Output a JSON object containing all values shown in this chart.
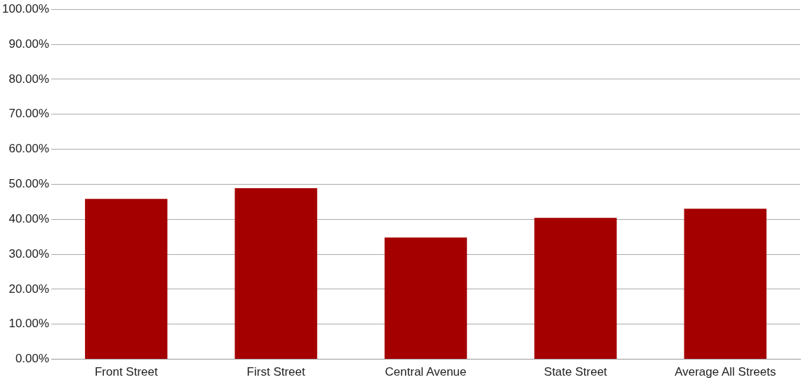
{
  "chart_data": {
    "type": "bar",
    "categories": [
      "Front Street",
      "First Street",
      "Central Avenue",
      "State Street",
      "Average All Streets"
    ],
    "values": [
      45.8,
      48.9,
      34.8,
      40.4,
      43.0
    ],
    "color": "#a40000",
    "ylim": [
      0,
      100
    ],
    "yticks": [
      {
        "value": 0,
        "label": "0.00%"
      },
      {
        "value": 10,
        "label": "10.00%"
      },
      {
        "value": 20,
        "label": "20.00%"
      },
      {
        "value": 30,
        "label": "30.00%"
      },
      {
        "value": 40,
        "label": "40.00%"
      },
      {
        "value": 50,
        "label": "50.00%"
      },
      {
        "value": 60,
        "label": "60.00%"
      },
      {
        "value": 70,
        "label": "70.00%"
      },
      {
        "value": 80,
        "label": "80.00%"
      },
      {
        "value": 90,
        "label": "90.00%"
      },
      {
        "value": 100,
        "label": "100.00%"
      }
    ],
    "grid": "y"
  }
}
